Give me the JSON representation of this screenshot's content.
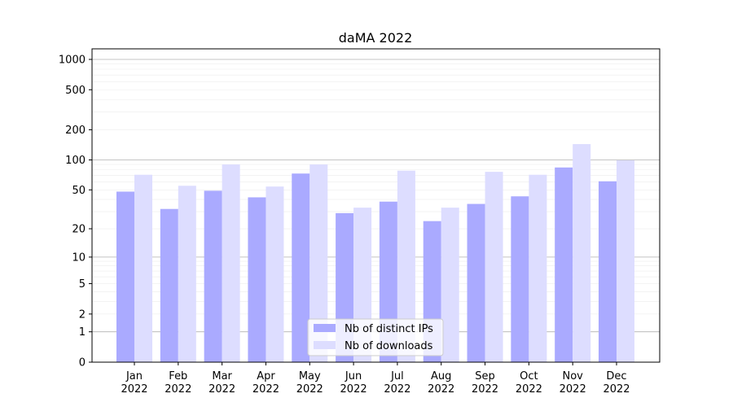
{
  "chart_data": {
    "type": "bar",
    "title": "daMA 2022",
    "xlabel": "",
    "ylabel": "",
    "yscale": "symlog (log10(1+x))",
    "ylim": [
      0,
      1273
    ],
    "yticks": [
      0,
      1,
      2,
      5,
      10,
      20,
      50,
      100,
      200,
      500,
      1000
    ],
    "grid": true,
    "legend_position": "lower-center",
    "categories": [
      "Jan\n2022",
      "Feb\n2022",
      "Mar\n2022",
      "Apr\n2022",
      "May\n2022",
      "Jun\n2022",
      "Jul\n2022",
      "Aug\n2022",
      "Sep\n2022",
      "Oct\n2022",
      "Nov\n2022",
      "Dec\n2022"
    ],
    "series": [
      {
        "name": "Nb of distinct IPs",
        "color": "#aaaaff",
        "values": [
          48,
          32,
          49,
          42,
          73,
          29,
          38,
          24,
          36,
          43,
          84,
          61
        ]
      },
      {
        "name": "Nb of downloads",
        "color": "#ddddff",
        "values": [
          71,
          55,
          90,
          54,
          90,
          33,
          78,
          33,
          76,
          71,
          144,
          99
        ]
      }
    ]
  }
}
